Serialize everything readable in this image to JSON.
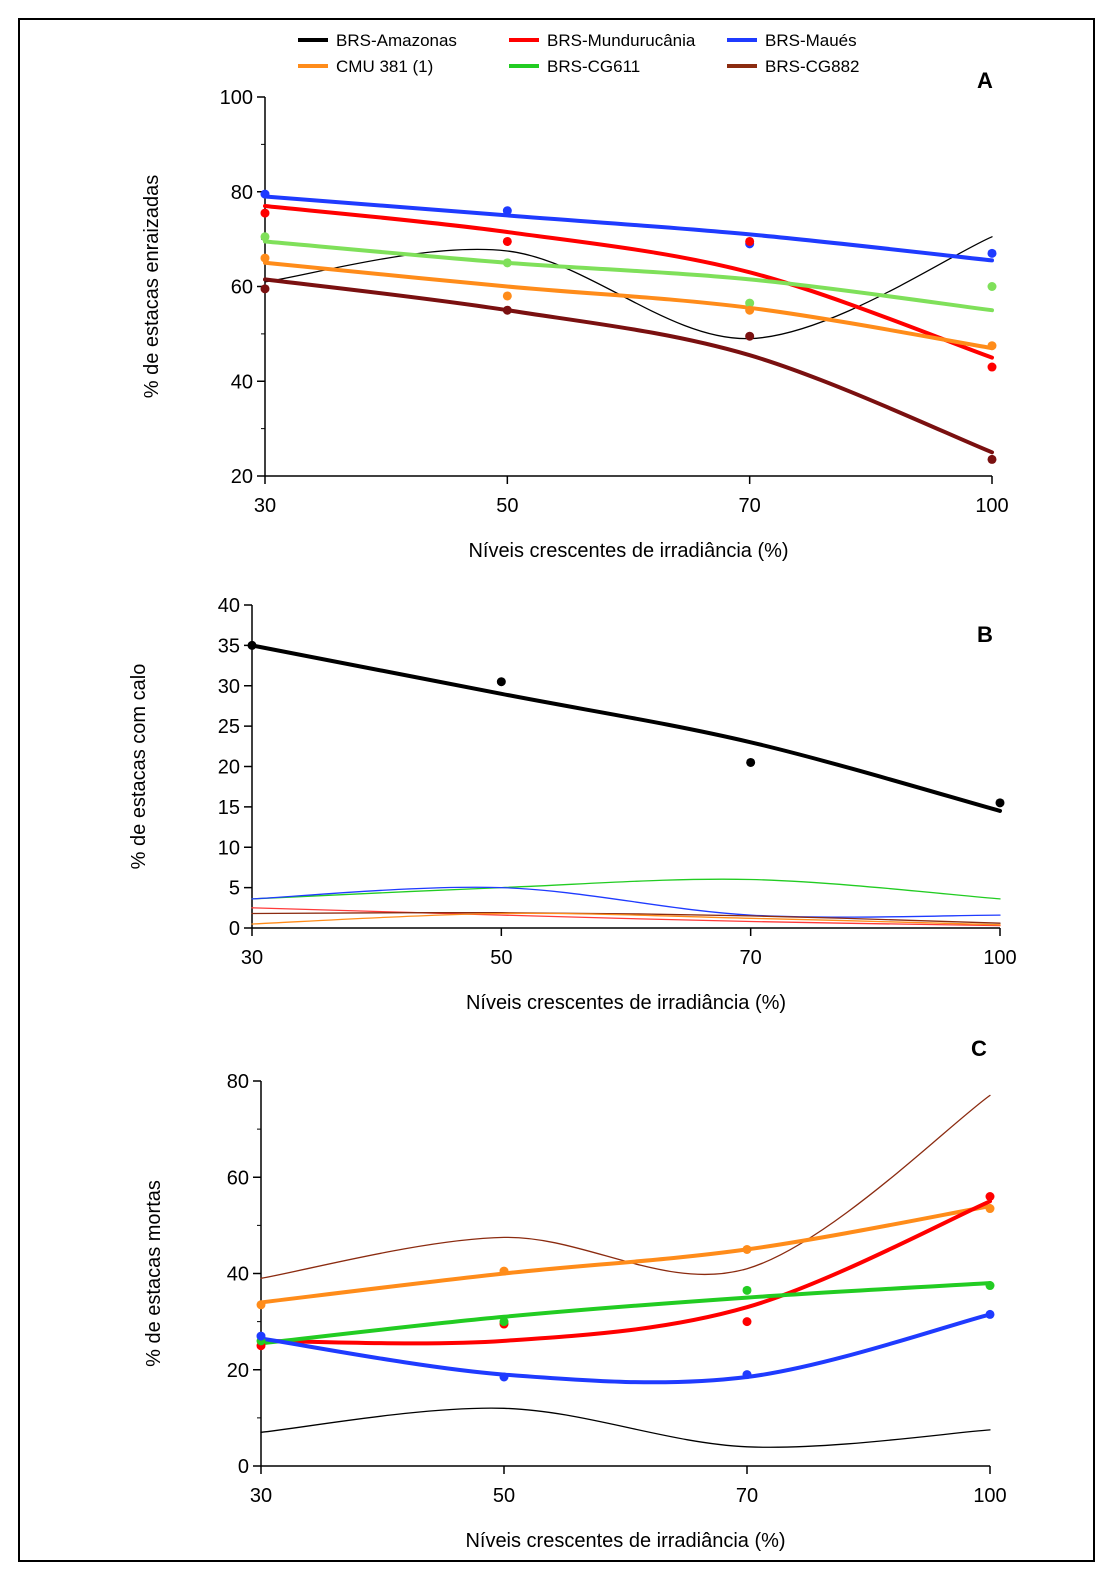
{
  "legend": [
    {
      "name": "BRS-Amazonas",
      "color": "#000000"
    },
    {
      "name": "BRS-Mundurucânia",
      "color": "#ff0000"
    },
    {
      "name": "BRS-Maués",
      "color": "#1f3bff"
    },
    {
      "name": "CMU 381 (1)",
      "color": "#ff8c1a"
    },
    {
      "name": "BRS-CG611",
      "color": "#22cc22"
    },
    {
      "name": "BRS-CG882",
      "color": "#8b2b10"
    }
  ],
  "chart_data": [
    {
      "type": "line",
      "panel": "A",
      "xlabel": "Níveis crescentes de irradiância (%)",
      "ylabel": "% de estacas enraizadas",
      "x_ticks": [
        "30",
        "50",
        "70",
        "100"
      ],
      "x": [
        "30",
        "50",
        "70",
        "100"
      ],
      "ylim": [
        20,
        100
      ],
      "y_ticks": [
        20,
        40,
        60,
        80,
        100
      ],
      "y_tick_labels": [
        "20",
        "40",
        "60",
        "80",
        "100"
      ],
      "series": [
        {
          "name": "BRS-Maués",
          "color": "#1f3bff",
          "points": [
            79.5,
            76,
            69,
            67
          ],
          "fit": [
            79,
            75,
            71,
            65.5
          ],
          "thick": true
        },
        {
          "name": "BRS-Mundurucânia",
          "color": "#ff0000",
          "points": [
            75.5,
            69.5,
            69.5,
            43
          ],
          "fit": [
            77,
            71.5,
            63,
            45
          ],
          "thick": true
        },
        {
          "name": "BRS-CG611",
          "color": "#7fe05a",
          "points": [
            70.5,
            65,
            56.5,
            60
          ],
          "fit": [
            69.5,
            65,
            61.5,
            55
          ],
          "thick": true
        },
        {
          "name": "CMU 381 (1)",
          "color": "#ff8c1a",
          "points": [
            66,
            58,
            55,
            47.5
          ],
          "fit": [
            65,
            60,
            55.5,
            47
          ],
          "thick": true
        },
        {
          "name": "BRS-CG882",
          "color": "#7a1010",
          "points": [
            59.5,
            55,
            49.5,
            23.5
          ],
          "fit": [
            61.5,
            55,
            45.5,
            25
          ],
          "thick": true
        },
        {
          "name": "BRS-Amazonas",
          "color": "#000000",
          "points": [],
          "fit": [
            61,
            67.5,
            49,
            70.5
          ],
          "thick": false
        }
      ]
    },
    {
      "type": "line",
      "panel": "B",
      "xlabel": "Níveis crescentes de irradiância (%)",
      "ylabel": "% de estacas com calo",
      "x_ticks": [
        "30",
        "50",
        "70",
        "100"
      ],
      "x": [
        "30",
        "50",
        "70",
        "100"
      ],
      "ylim": [
        0,
        40
      ],
      "y_ticks": [
        0,
        5,
        10,
        15,
        20,
        25,
        30,
        35,
        40
      ],
      "y_tick_labels": [
        "0",
        "5",
        "10",
        "15",
        "20",
        "25",
        "30",
        "35",
        "40"
      ],
      "series": [
        {
          "name": "BRS-Amazonas",
          "color": "#000000",
          "points": [
            35,
            30.5,
            20.5,
            15.5
          ],
          "fit": [
            35,
            29,
            23,
            14.5
          ],
          "thick": true
        },
        {
          "name": "BRS-CG611",
          "color": "#22cc22",
          "points": [],
          "fit": [
            3.6,
            5,
            6,
            3.6
          ],
          "thick": false
        },
        {
          "name": "BRS-Maués",
          "color": "#1f3bff",
          "points": [],
          "fit": [
            3.6,
            5,
            1.6,
            1.6
          ],
          "thick": false
        },
        {
          "name": "BRS-Mundurucânia",
          "color": "#ff3a3a",
          "points": [],
          "fit": [
            2.5,
            1.6,
            0.8,
            0.3
          ],
          "thick": false
        },
        {
          "name": "BRS-CG882",
          "color": "#8b2b10",
          "points": [],
          "fit": [
            1.8,
            1.9,
            1.5,
            0.6
          ],
          "thick": false
        },
        {
          "name": "CMU 381 (1)",
          "color": "#ff8c1a",
          "points": [],
          "fit": [
            0.5,
            1.8,
            1.2,
            0.4
          ],
          "thick": false
        }
      ]
    },
    {
      "type": "line",
      "panel": "C",
      "xlabel": "Níveis crescentes de irradiância (%)",
      "ylabel": "% de estacas mortas",
      "x_ticks": [
        "30",
        "50",
        "70",
        "100"
      ],
      "x": [
        "30",
        "50",
        "70",
        "100"
      ],
      "ylim": [
        0,
        80
      ],
      "y_ticks": [
        0,
        20,
        40,
        60,
        80
      ],
      "y_tick_labels": [
        "0",
        "20",
        "40",
        "60",
        "80"
      ],
      "series": [
        {
          "name": "CMU 381 (1)",
          "color": "#ff8c1a",
          "points": [
            33.5,
            40.5,
            45,
            53.5
          ],
          "fit": [
            34,
            40,
            45,
            54
          ],
          "thick": true
        },
        {
          "name": "BRS-Mundurucânia",
          "color": "#ff0000",
          "points": [
            25,
            29.5,
            30,
            56
          ],
          "fit": [
            26,
            26,
            33,
            55
          ],
          "thick": true
        },
        {
          "name": "BRS-CG611",
          "color": "#22cc22",
          "points": [
            26,
            30,
            36.5,
            37.5
          ],
          "fit": [
            25.5,
            31,
            35,
            38
          ],
          "thick": true
        },
        {
          "name": "BRS-Maués",
          "color": "#1f3bff",
          "points": [
            27,
            18.5,
            19,
            31.5
          ],
          "fit": [
            26.5,
            19,
            18.5,
            31.5
          ],
          "thick": true
        },
        {
          "name": "BRS-CG882",
          "color": "#8b2b10",
          "points": [],
          "fit": [
            39,
            47.5,
            41,
            77
          ],
          "thick": false
        },
        {
          "name": "BRS-Amazonas",
          "color": "#000000",
          "points": [],
          "fit": [
            7,
            12,
            4,
            7.5
          ],
          "thick": false
        }
      ]
    }
  ]
}
